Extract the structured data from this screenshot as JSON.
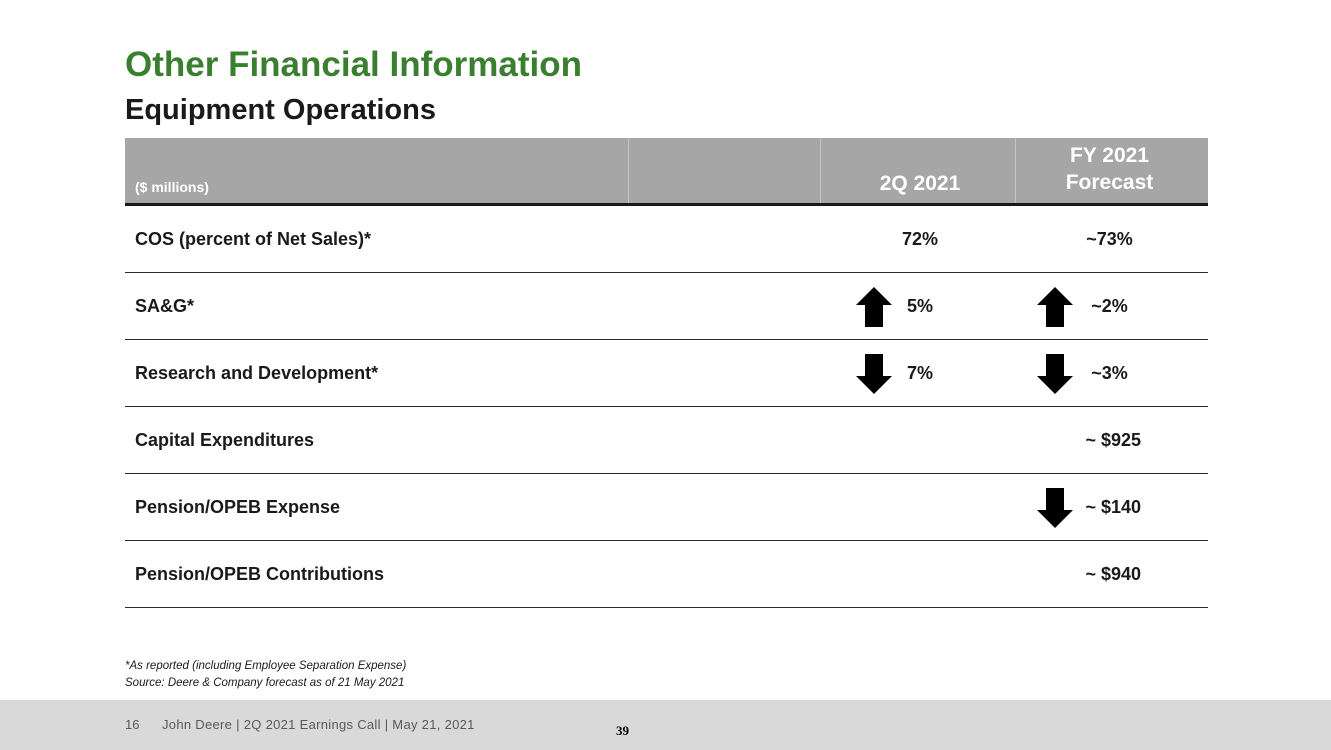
{
  "title": "Other Financial Information",
  "subtitle": "Equipment Operations",
  "table": {
    "header": {
      "label": "($ millions)",
      "col1": "2Q 2021",
      "col2_line1": "FY 2021",
      "col2_line2": "Forecast"
    },
    "rows": [
      {
        "label": "COS (percent of Net Sales)*",
        "col1": "72%",
        "col2": "~73%"
      },
      {
        "label": "SA&G*",
        "col1": "5%",
        "col1_icon": "up-arrow-icon",
        "col2": "~2%",
        "col2_icon": "up-arrow-icon"
      },
      {
        "label": "Research and Development*",
        "col1": "7%",
        "col1_icon": "down-arrow-icon",
        "col2": "~3%",
        "col2_icon": "down-arrow-icon"
      },
      {
        "label": "Capital Expenditures",
        "col1": "",
        "col2": "~ $925"
      },
      {
        "label": "Pension/OPEB Expense",
        "col1": "",
        "col2": "~ $140",
        "col2_icon": "down-arrow-icon"
      },
      {
        "label": "Pension/OPEB Contributions",
        "col1": "",
        "col2": "~ $940"
      }
    ]
  },
  "footnotes": {
    "line1": "*As reported (including Employee Separation Expense)",
    "line2": "Source: Deere & Company forecast as of 21 May 2021"
  },
  "footer": {
    "page": "16",
    "text": "John Deere | 2Q 2021 Earnings Call | May 21, 2021",
    "slide_number": "39"
  },
  "colors": {
    "title_green": "#3a7f2f",
    "header_gray": "#a6a6a6",
    "footer_gray": "#d9d9d9"
  }
}
